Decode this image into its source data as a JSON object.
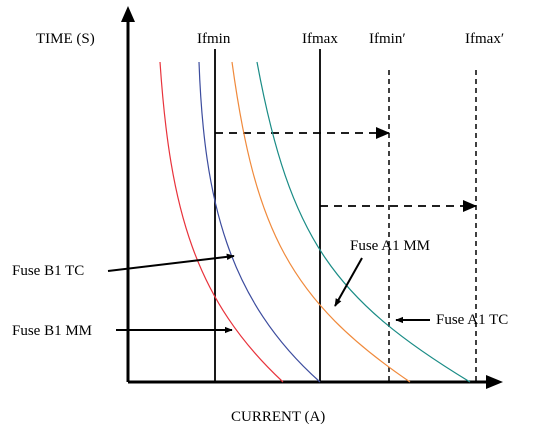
{
  "axes": {
    "y_label": "TIME (S)",
    "x_label": "CURRENT (A)"
  },
  "vertical_markers": {
    "ifmin": "Ifmin",
    "ifmax": "Ifmax",
    "ifmin_prime": "Ifmin′",
    "ifmax_prime": "Ifmax′"
  },
  "curve_labels": {
    "fuse_b1_tc": "Fuse B1 TC",
    "fuse_b1_mm": "Fuse B1 MM",
    "fuse_a1_mm": "Fuse A1 MM",
    "fuse_a1_tc": "Fuse A1 TC"
  },
  "colors": {
    "fuse_b1_mm": "#e8333c",
    "fuse_b1_tc": "#3c4c9e",
    "fuse_a1_mm": "#f08a3c",
    "fuse_a1_tc": "#1a8c86",
    "axis": "#000000"
  }
}
